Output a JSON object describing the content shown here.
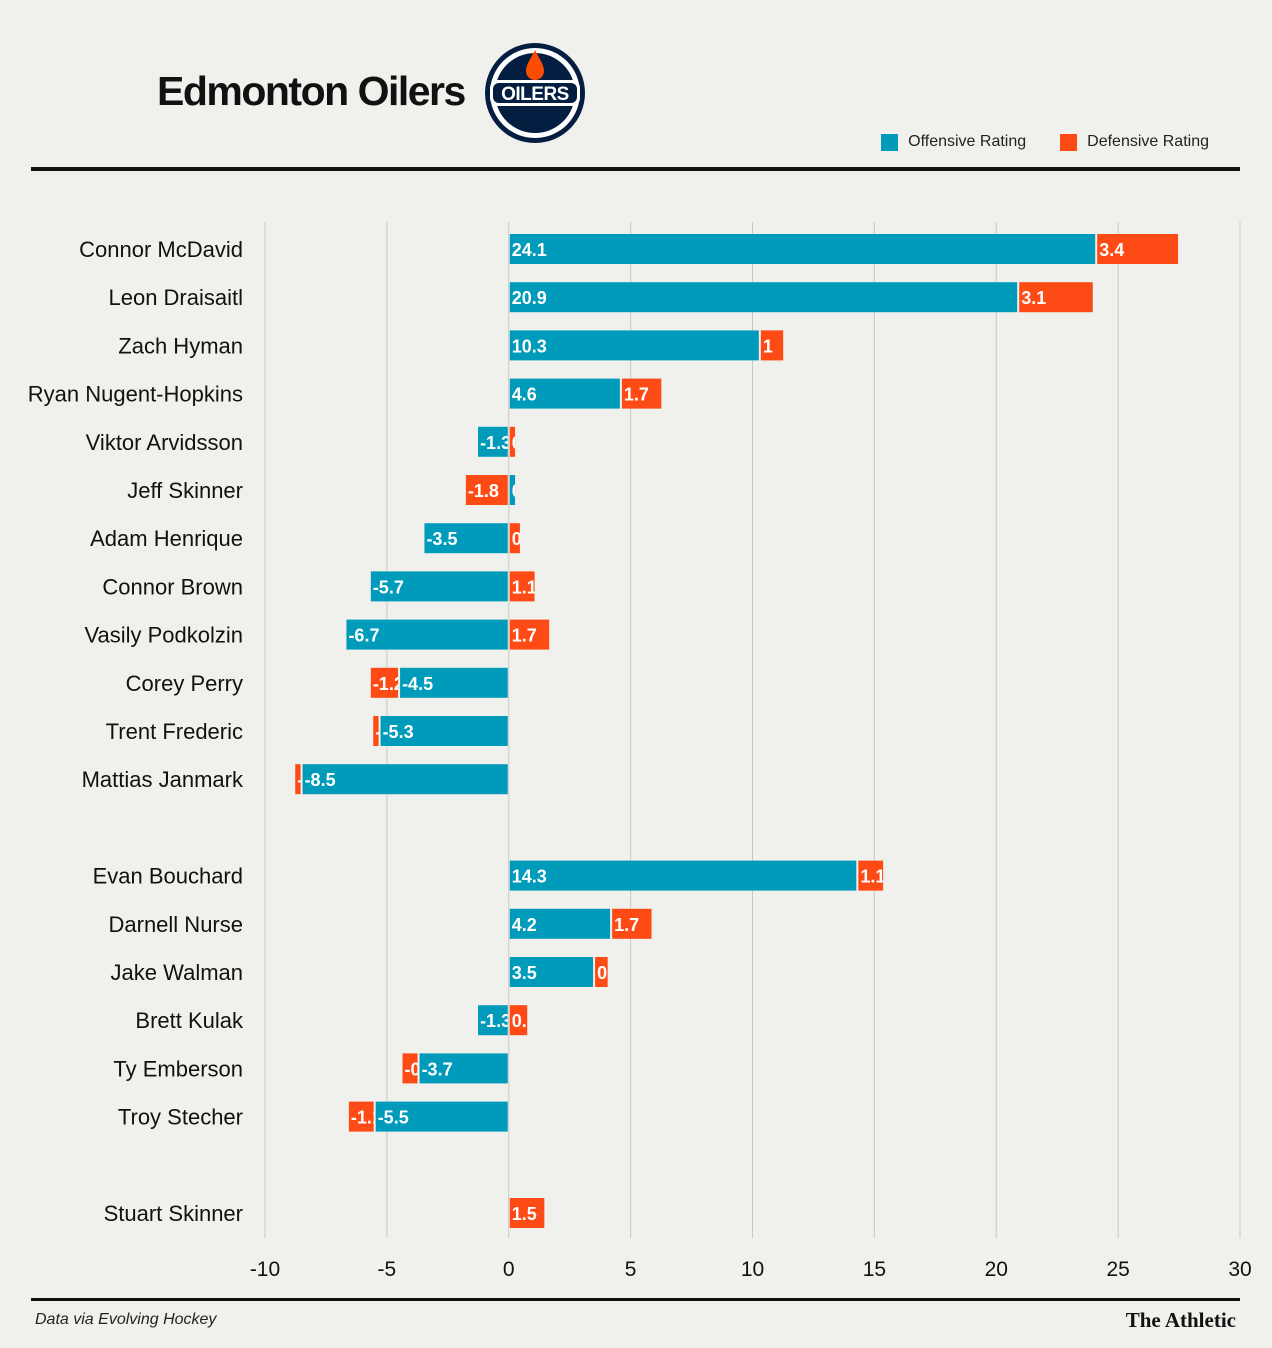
{
  "header": {
    "title": "Edmonton Oilers",
    "logo_text": "OILERS"
  },
  "legend": {
    "offensive": "Offensive Rating",
    "defensive": "Defensive Rating"
  },
  "colors": {
    "offensive": "#009bbb",
    "defensive": "#fe4a14",
    "grid": "#c8c8c4",
    "logo_navy": "#041e42",
    "logo_orange": "#fc4c02"
  },
  "footer": {
    "source": "Data via Evolving Hockey",
    "brand": "The Athletic"
  },
  "chart_data": {
    "type": "bar",
    "orientation": "horizontal",
    "stacked": true,
    "xlim": [
      -10,
      30
    ],
    "ticks": [
      -10,
      -5,
      0,
      5,
      10,
      15,
      20,
      25,
      30
    ],
    "grid": true,
    "legend_position": "top-right",
    "groups": [
      {
        "players": [
          {
            "name": "Connor McDavid",
            "offensive": 24.1,
            "defensive": 3.4
          },
          {
            "name": "Leon Draisaitl",
            "offensive": 20.9,
            "defensive": 3.1
          },
          {
            "name": "Zach Hyman",
            "offensive": 10.3,
            "defensive": 1.0
          },
          {
            "name": "Ryan Nugent-Hopkins",
            "offensive": 4.6,
            "defensive": 1.7
          },
          {
            "name": "Viktor Arvidsson",
            "offensive": -1.3,
            "defensive": 0.3
          },
          {
            "name": "Jeff Skinner",
            "offensive": 0.3,
            "defensive": -1.8
          },
          {
            "name": "Adam Henrique",
            "offensive": -3.5,
            "defensive": 0.5
          },
          {
            "name": "Connor Brown",
            "offensive": -5.7,
            "defensive": 1.1
          },
          {
            "name": "Vasily Podkolzin",
            "offensive": -6.7,
            "defensive": 1.7
          },
          {
            "name": "Corey Perry",
            "offensive": -4.5,
            "defensive": -1.2
          },
          {
            "name": "Trent Frederic",
            "offensive": -5.3,
            "defensive": -0.3
          },
          {
            "name": "Mattias Janmark",
            "offensive": -8.5,
            "defensive": -0.3
          }
        ]
      },
      {
        "players": [
          {
            "name": "Evan Bouchard",
            "offensive": 14.3,
            "defensive": 1.1
          },
          {
            "name": "Darnell Nurse",
            "offensive": 4.2,
            "defensive": 1.7
          },
          {
            "name": "Jake Walman",
            "offensive": 3.5,
            "defensive": 0.6
          },
          {
            "name": "Brett Kulak",
            "offensive": -1.3,
            "defensive": 0.8
          },
          {
            "name": "Ty Emberson",
            "offensive": -3.7,
            "defensive": -0.7
          },
          {
            "name": "Troy Stecher",
            "offensive": -5.5,
            "defensive": -1.1
          }
        ]
      },
      {
        "players": [
          {
            "name": "Stuart Skinner",
            "offensive": null,
            "defensive": 1.5
          }
        ]
      }
    ]
  }
}
